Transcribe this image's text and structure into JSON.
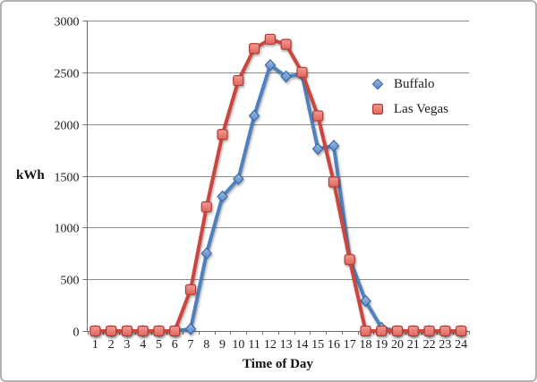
{
  "chart_data": {
    "type": "line",
    "title": "",
    "xlabel": "Time of Day",
    "ylabel": "kWh",
    "x": [
      1,
      2,
      3,
      4,
      5,
      6,
      7,
      8,
      9,
      10,
      11,
      12,
      13,
      14,
      15,
      16,
      17,
      18,
      19,
      20,
      21,
      22,
      23,
      24
    ],
    "ylim": [
      0,
      3000
    ],
    "yticks": [
      0,
      500,
      1000,
      1500,
      2000,
      2500,
      3000
    ],
    "grid": true,
    "legend_position": "inside-right",
    "series": [
      {
        "name": "Buffalo",
        "marker": "diamond",
        "line_color": "#4f81bd",
        "marker_fill_light": "#9dbde6",
        "marker_fill_dark": "#5988c5",
        "marker_stroke": "#3a6aa5",
        "values": [
          0,
          0,
          0,
          0,
          0,
          0,
          20,
          750,
          1300,
          1470,
          2080,
          2570,
          2460,
          2480,
          1760,
          1790,
          700,
          290,
          30,
          0,
          0,
          0,
          0,
          0
        ]
      },
      {
        "name": "Las Vegas",
        "marker": "square",
        "line_color": "#c9463f",
        "marker_fill_light": "#f09b93",
        "marker_fill_dark": "#e0655c",
        "marker_stroke": "#b03a34",
        "values": [
          0,
          0,
          0,
          0,
          0,
          0,
          400,
          1200,
          1900,
          2420,
          2730,
          2820,
          2770,
          2500,
          2080,
          1440,
          690,
          0,
          0,
          0,
          0,
          0,
          0,
          0
        ]
      }
    ],
    "colors": {
      "gridline": "#8c8c8c",
      "axis": "#707070",
      "tick_text": "#1a1a1a",
      "frame_border": "#b2b2b2"
    }
  }
}
